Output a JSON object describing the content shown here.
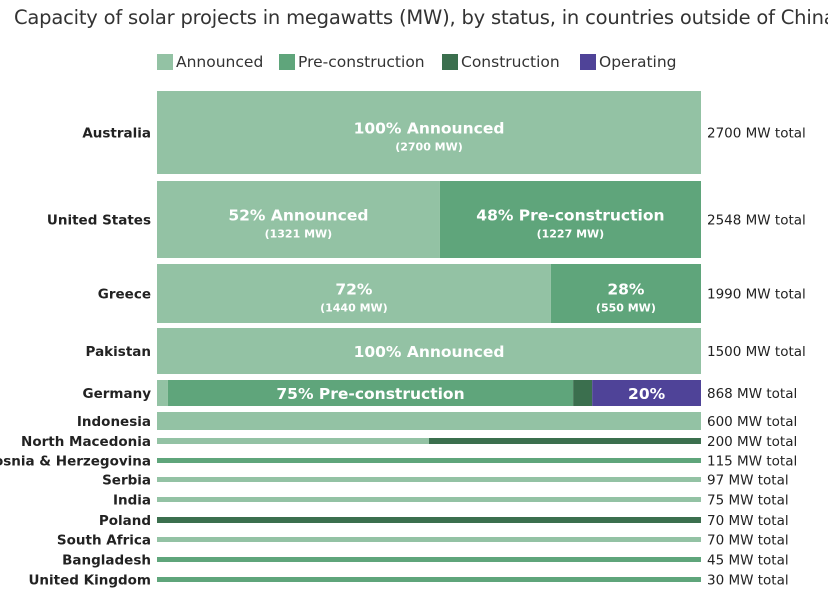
{
  "chart_data": {
    "type": "bar",
    "orientation": "horizontal",
    "stacked": true,
    "normalized": true,
    "title": "Capacity of solar projects in megawatts (MW), by status, in countries outside of China",
    "legend_position": "top",
    "statuses": [
      {
        "key": "announced",
        "name": "Announced",
        "color": "#93c2a4"
      },
      {
        "key": "pre_construction",
        "name": "Pre-construction",
        "color": "#5fa57b"
      },
      {
        "key": "construction",
        "name": "Construction",
        "color": "#3b6f4e"
      },
      {
        "key": "operating",
        "name": "Operating",
        "color": "#4f4398"
      }
    ],
    "categories": [
      {
        "name": "Australia",
        "total": "2700 MW  total",
        "segments": [
          {
            "status": "announced",
            "share": 1.0,
            "pct_label": "100%  Announced",
            "mw_label": "(2700 MW)"
          }
        ]
      },
      {
        "name": "United States",
        "total": "2548 MW total",
        "segments": [
          {
            "status": "announced",
            "share": 0.52,
            "pct_label": "52%  Announced",
            "mw_label": "(1321 MW)"
          },
          {
            "status": "pre_construction",
            "share": 0.48,
            "pct_label": "48% Pre-construction",
            "mw_label": "(1227 MW)"
          }
        ]
      },
      {
        "name": "Greece",
        "total": "1990 MW total",
        "segments": [
          {
            "status": "announced",
            "share": 0.724,
            "pct_label": "72%",
            "mw_label": "(1440 MW)"
          },
          {
            "status": "pre_construction",
            "share": 0.276,
            "pct_label": "28%",
            "mw_label": "(550 MW)"
          }
        ]
      },
      {
        "name": "Pakistan",
        "total": "1500 MW total",
        "segments": [
          {
            "status": "announced",
            "share": 1.0,
            "pct_label": "100% Announced"
          }
        ]
      },
      {
        "name": "Germany",
        "total": "868 MW total",
        "segments": [
          {
            "status": "announced",
            "share": 0.02
          },
          {
            "status": "pre_construction",
            "share": 0.745,
            "pct_label": "75% Pre-construction"
          },
          {
            "status": "construction",
            "share": 0.035
          },
          {
            "status": "operating",
            "share": 0.2,
            "pct_label": "20%"
          }
        ]
      },
      {
        "name": "Indonesia",
        "total": "600 MW total",
        "segments": [
          {
            "status": "announced",
            "share": 1.0
          }
        ]
      },
      {
        "name": "North Macedonia",
        "total": "200 MW total",
        "segments": [
          {
            "status": "announced",
            "share": 0.5
          },
          {
            "status": "construction",
            "share": 0.5
          }
        ]
      },
      {
        "name": "Bosnia & Herzegovina",
        "total": "115 MW total",
        "segments": [
          {
            "status": "pre_construction",
            "share": 1.0
          }
        ]
      },
      {
        "name": "Serbia",
        "total": "97 MW total",
        "segments": [
          {
            "status": "announced",
            "share": 1.0
          }
        ]
      },
      {
        "name": "India",
        "total": "75 MW total",
        "segments": [
          {
            "status": "announced",
            "share": 1.0
          }
        ]
      },
      {
        "name": "Poland",
        "total": "70 MW total",
        "segments": [
          {
            "status": "construction",
            "share": 1.0
          }
        ]
      },
      {
        "name": "South Africa",
        "total": "70 MW total",
        "segments": [
          {
            "status": "announced",
            "share": 1.0
          }
        ]
      },
      {
        "name": "Bangladesh",
        "total": "45 MW total",
        "segments": [
          {
            "status": "pre_construction",
            "share": 1.0
          }
        ]
      },
      {
        "name": "United Kingdom",
        "total": "30 MW total",
        "segments": [
          {
            "status": "pre_construction",
            "share": 1.0
          }
        ]
      }
    ]
  }
}
